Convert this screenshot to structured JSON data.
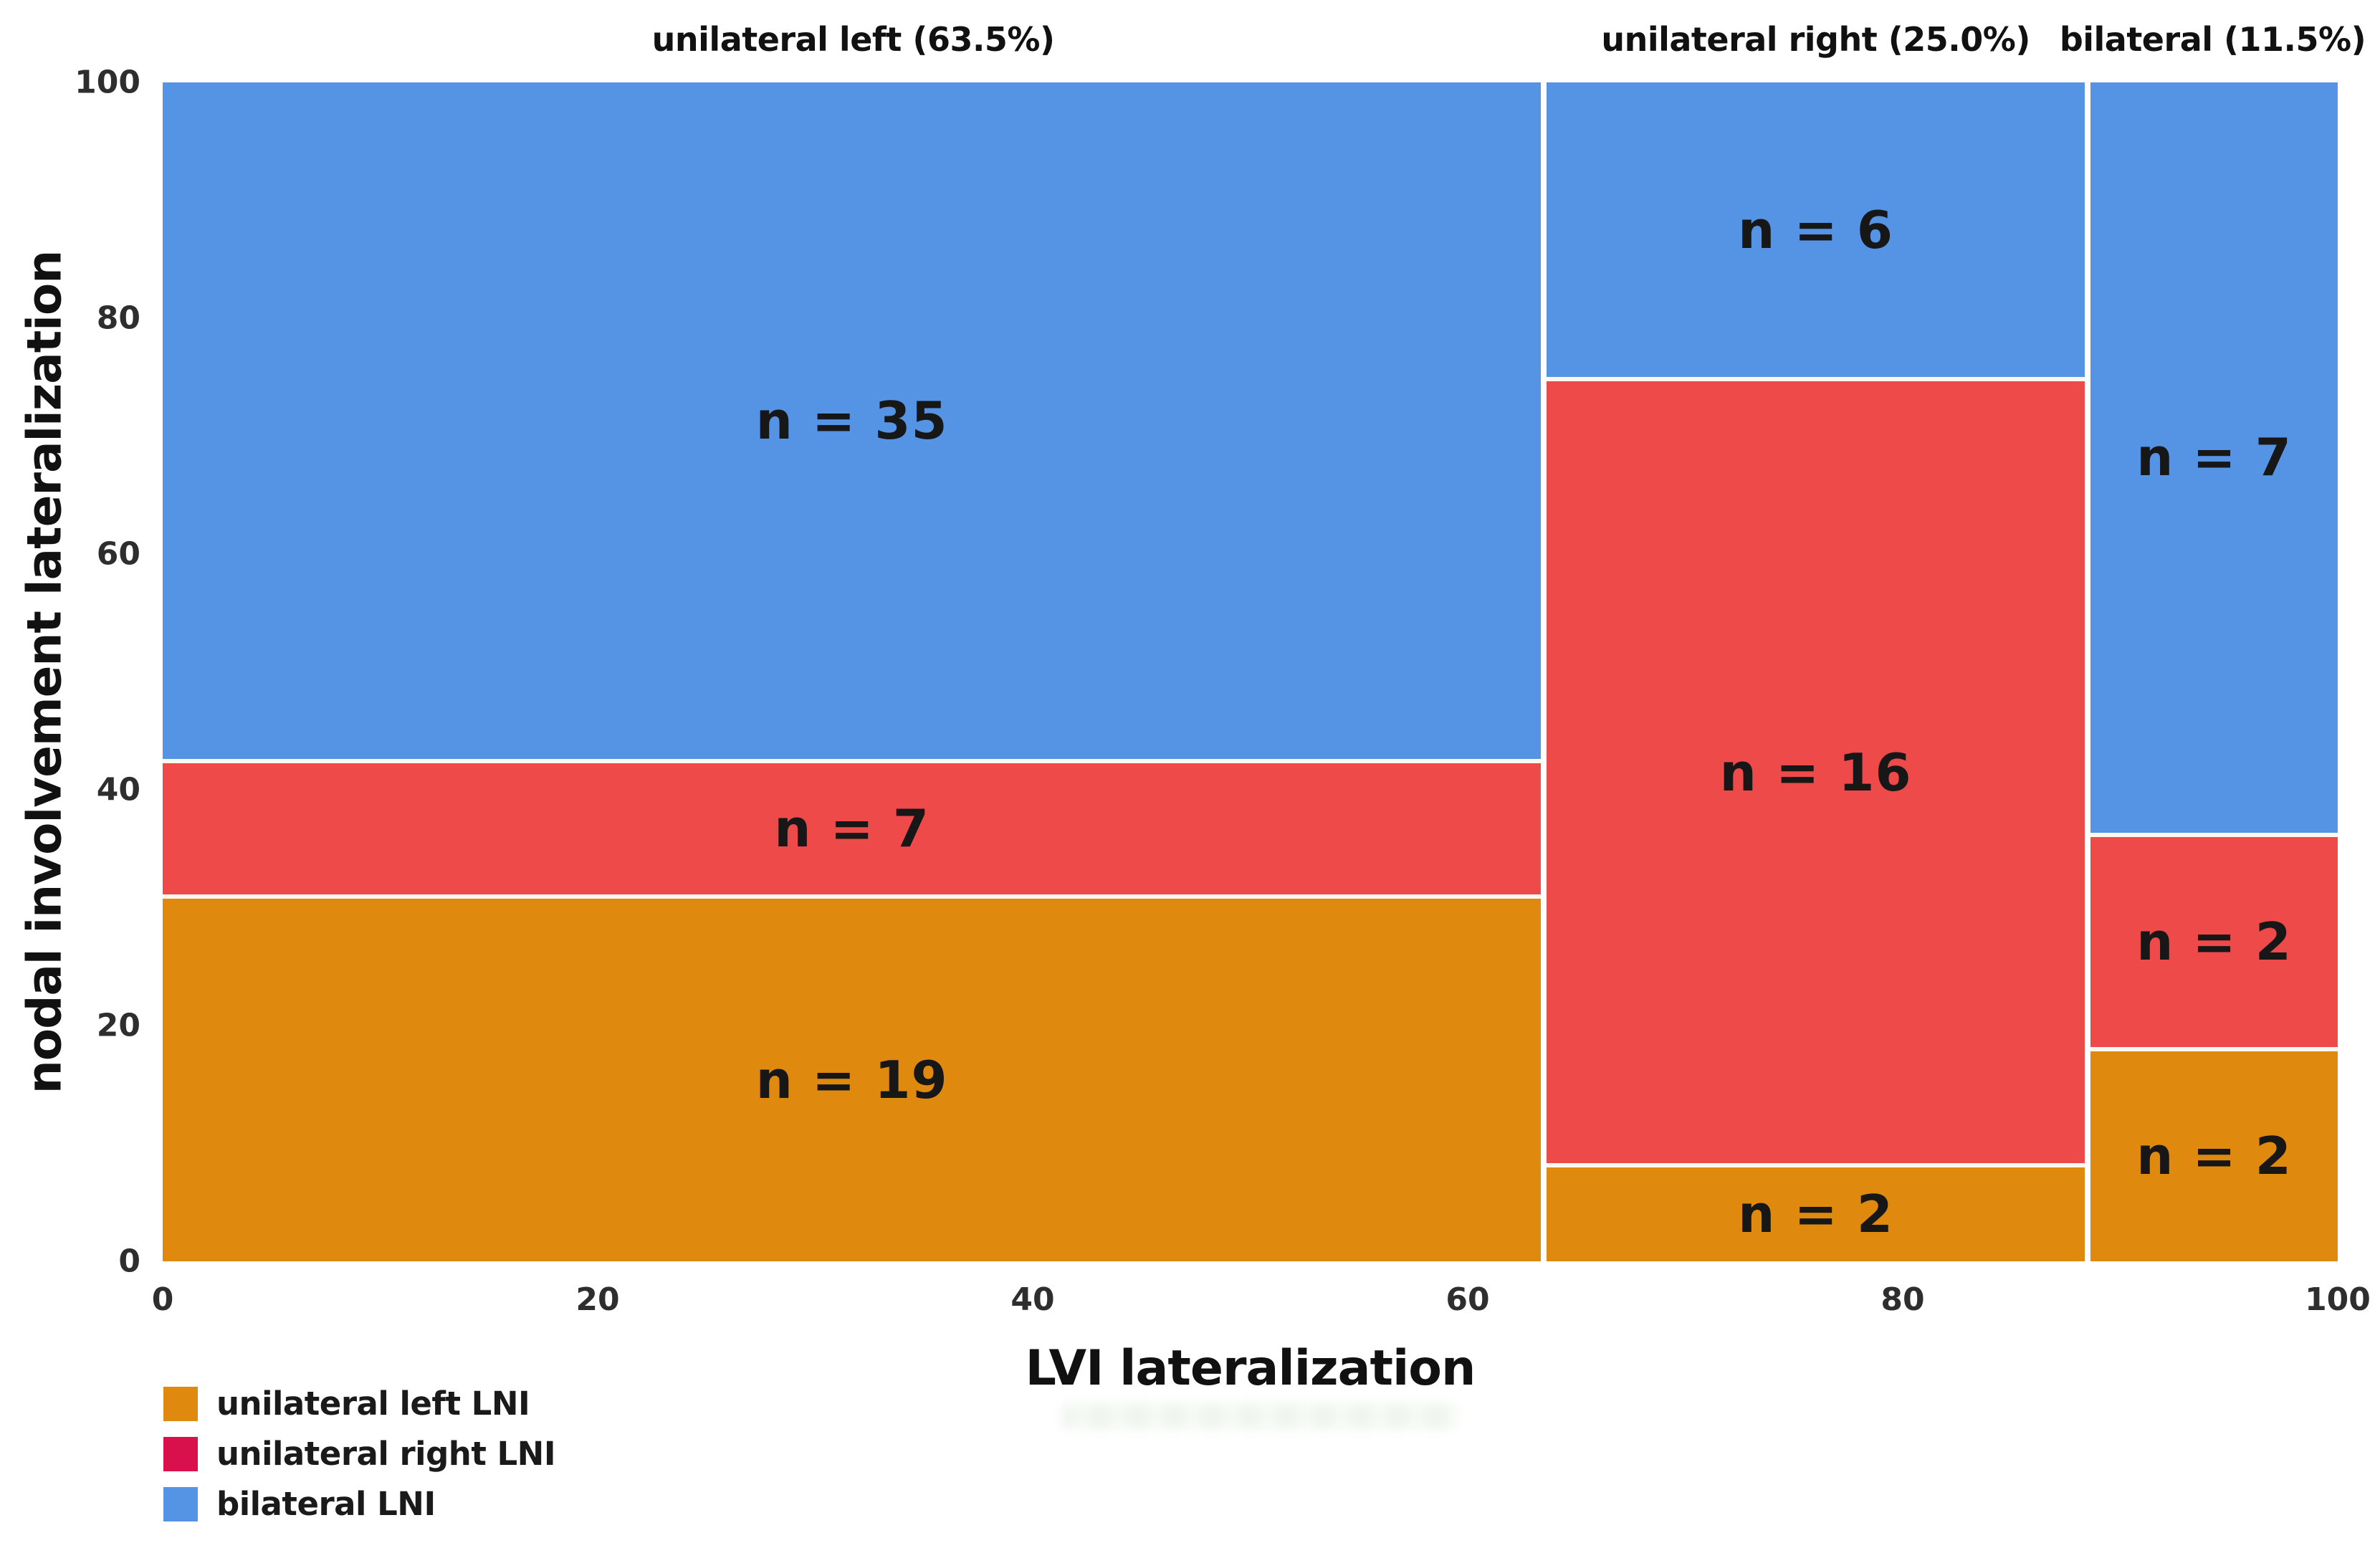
{
  "figure": {
    "background": "#ffffff"
  },
  "chart_data": {
    "type": "mosaic",
    "xlabel": "LVI lateralization",
    "ylabel": "nodal involvement lateralization",
    "xlim": [
      0,
      100
    ],
    "ylim": [
      0,
      100
    ],
    "x_ticks": [
      0,
      20,
      40,
      60,
      80,
      100
    ],
    "y_ticks": [
      0,
      20,
      40,
      60,
      80,
      100
    ],
    "grid": false,
    "legend_position": "bottom-left",
    "columns": [
      {
        "category": "unilateral left",
        "header": "unilateral left (63.5%)",
        "share_pct": 63.5,
        "segments": [
          {
            "series": "bilateral LNI",
            "n": 35,
            "label": "n = 35",
            "color": "#5593E4"
          },
          {
            "series": "unilateral right LNI",
            "n": 7,
            "label": "n = 7",
            "color": "#EE4A4A"
          },
          {
            "series": "unilateral left LNI",
            "n": 19,
            "label": "n = 19",
            "color": "#E0890F"
          }
        ]
      },
      {
        "category": "unilateral right",
        "header": "unilateral right (25.0%)",
        "share_pct": 25.0,
        "segments": [
          {
            "series": "bilateral LNI",
            "n": 6,
            "label": "n = 6",
            "color": "#5593E4"
          },
          {
            "series": "unilateral right LNI",
            "n": 16,
            "label": "n = 16",
            "color": "#EE4A4A"
          },
          {
            "series": "unilateral left LNI",
            "n": 2,
            "label": "n = 2",
            "color": "#E0890F"
          }
        ]
      },
      {
        "category": "bilateral",
        "header": "bilateral (11.5%)",
        "share_pct": 11.5,
        "segments": [
          {
            "series": "bilateral LNI",
            "n": 7,
            "label": "n = 7",
            "color": "#5593E4"
          },
          {
            "series": "unilateral right LNI",
            "n": 2,
            "label": "n = 2",
            "color": "#EE4A4A"
          },
          {
            "series": "unilateral left LNI",
            "n": 2,
            "label": "n = 2",
            "color": "#E0890F"
          }
        ]
      }
    ],
    "legend": {
      "items": [
        {
          "label": "unilateral left LNI",
          "color": "#E0890F"
        },
        {
          "label": "unilateral right LNI",
          "color": "#D8104C"
        },
        {
          "label": "bilateral LNI",
          "color": "#5593E4"
        }
      ]
    },
    "colors": {
      "unilateral_left_LNI": "#E0890F",
      "unilateral_right_LNI_segment": "#EE4A4A",
      "unilateral_right_LNI_legend": "#D8104C",
      "bilateral_LNI": "#5593E4",
      "segment_label_text": "#171717",
      "tick_text": "#2e2e2e",
      "axis_title_text": "#111111"
    }
  }
}
